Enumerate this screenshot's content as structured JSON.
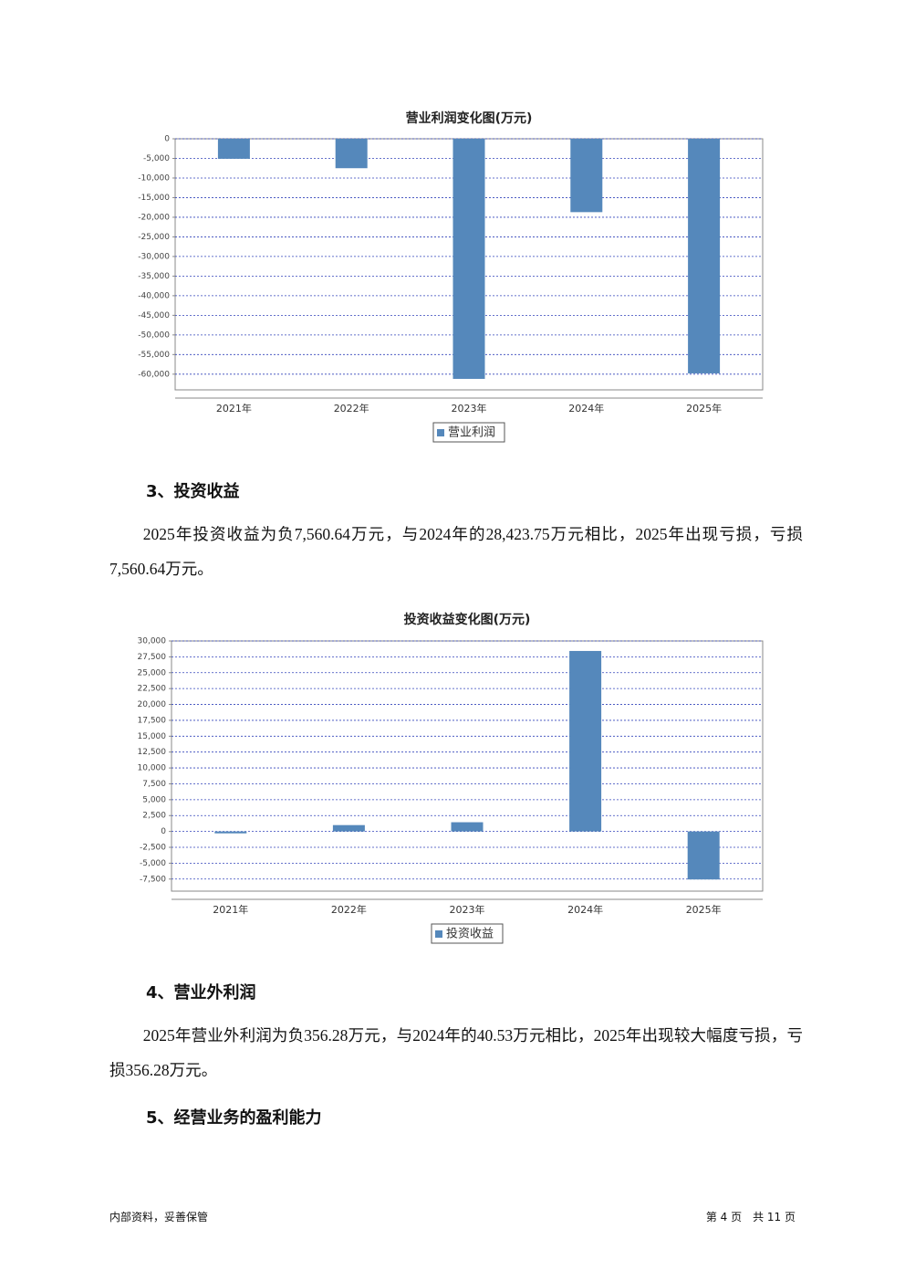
{
  "chart_data": [
    {
      "type": "bar",
      "title": "营业利润变化图(万元)",
      "categories": [
        "2021年",
        "2022年",
        "2023年",
        "2024年",
        "2025年"
      ],
      "series": [
        {
          "name": "营业利润",
          "color": "#5588bb",
          "values": [
            -5100,
            -7500,
            -61200,
            -18700,
            -59800
          ]
        }
      ],
      "ylim": [
        -64000,
        0
      ],
      "yticks": [
        0,
        {
          "value": -5000,
          "label": "-5,000"
        },
        {
          "value": -10000,
          "label": "-10,000"
        },
        {
          "value": -15000,
          "label": "-15,000"
        },
        {
          "value": -20000,
          "label": "-20,000"
        },
        {
          "value": -25000,
          "label": "-25,000"
        },
        {
          "value": -30000,
          "label": "-30,000"
        },
        {
          "value": -35000,
          "label": "-35,000"
        },
        {
          "value": -40000,
          "label": "-40,000"
        },
        {
          "value": -45000,
          "label": "-45,000"
        },
        {
          "value": -50000,
          "label": "-50,000"
        },
        {
          "value": -55000,
          "label": "-55,000"
        },
        {
          "value": -60000,
          "label": "-60,000"
        }
      ],
      "grid": true
    },
    {
      "type": "bar",
      "title": "投资收益变化图(万元)",
      "categories": [
        "2021年",
        "2022年",
        "2023年",
        "2024年",
        "2025年"
      ],
      "series": [
        {
          "name": "投资收益",
          "color": "#5588bb",
          "values": [
            -300,
            1000,
            1450,
            28423.75,
            -7560.64
          ]
        }
      ],
      "ylim": [
        -9400,
        30000
      ],
      "yticks": [
        {
          "value": 30000,
          "label": "30,000"
        },
        {
          "value": 27500,
          "label": "27,500"
        },
        {
          "value": 25000,
          "label": "25,000"
        },
        {
          "value": 22500,
          "label": "22,500"
        },
        {
          "value": 20000,
          "label": "20,000"
        },
        {
          "value": 17500,
          "label": "17,500"
        },
        {
          "value": 15000,
          "label": "15,000"
        },
        {
          "value": 12500,
          "label": "12,500"
        },
        {
          "value": 10000,
          "label": "10,000"
        },
        {
          "value": 7500,
          "label": "7,500"
        },
        {
          "value": 5000,
          "label": "5,000"
        },
        {
          "value": 2500,
          "label": "2,500"
        },
        0,
        {
          "value": -2500,
          "label": "-2,500"
        },
        {
          "value": -5000,
          "label": "-5,000"
        },
        {
          "value": -7500,
          "label": "-7,500"
        }
      ],
      "grid": true
    }
  ],
  "sections": [
    {
      "heading": "3、投资收益",
      "paragraph": "2025年投资收益为负7,560.64万元，与2024年的28,423.75万元相比，2025年出现亏损，亏损7,560.64万元。"
    },
    {
      "heading": "4、营业外利润",
      "paragraph": "2025年营业外利润为负356.28万元，与2024年的40.53万元相比，2025年出现较大幅度亏损，亏损356.28万元。"
    },
    {
      "heading": "5、经营业务的盈利能力"
    }
  ],
  "footer": {
    "left": "内部资料，妥善保管",
    "right": "第 4 页　共 11 页"
  }
}
